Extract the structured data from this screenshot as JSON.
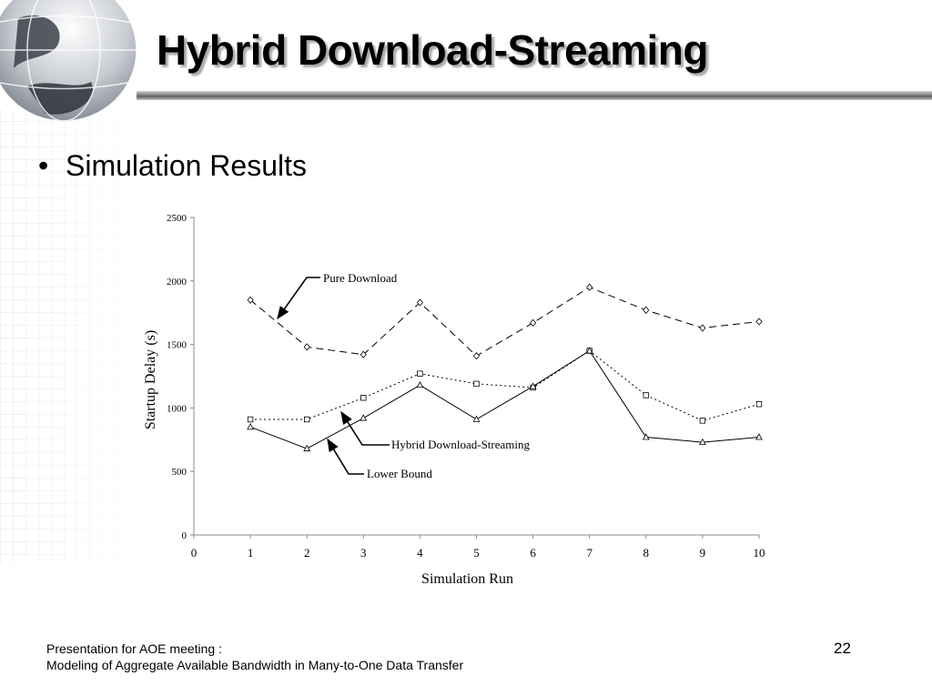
{
  "slide": {
    "title": "Hybrid Download-Streaming",
    "bullet": "Simulation Results",
    "footer_line1": "Presentation for AOE meeting :",
    "footer_line2": "Modeling of Aggregate Available Bandwidth in Many-to-One Data Transfer",
    "page_number": "22"
  },
  "chart_data": {
    "type": "line",
    "xlabel": "Simulation Run",
    "ylabel": "Startup Delay (s)",
    "xlim": [
      0,
      10
    ],
    "ylim": [
      0,
      2500
    ],
    "xticks": [
      "0",
      "1",
      "2",
      "3",
      "4",
      "5",
      "6",
      "7",
      "8",
      "9",
      "10"
    ],
    "yticks": [
      "0",
      "500",
      "1000",
      "1500",
      "2000",
      "2500"
    ],
    "grid": false,
    "x": [
      1,
      2,
      3,
      4,
      5,
      6,
      7,
      8,
      9,
      10
    ],
    "series": [
      {
        "name": "Pure Download",
        "style": "dashed",
        "marker": "diamond",
        "values": [
          1850,
          1480,
          1420,
          1830,
          1410,
          1670,
          1950,
          1770,
          1630,
          1680
        ]
      },
      {
        "name": "Hybrid Download-Streaming",
        "style": "dotted",
        "marker": "square",
        "values": [
          910,
          910,
          1080,
          1270,
          1190,
          1160,
          1450,
          1100,
          900,
          1030
        ]
      },
      {
        "name": "Lower Bound",
        "style": "solid",
        "marker": "triangle",
        "values": [
          850,
          680,
          920,
          1180,
          910,
          1170,
          1450,
          770,
          730,
          770
        ]
      }
    ]
  }
}
